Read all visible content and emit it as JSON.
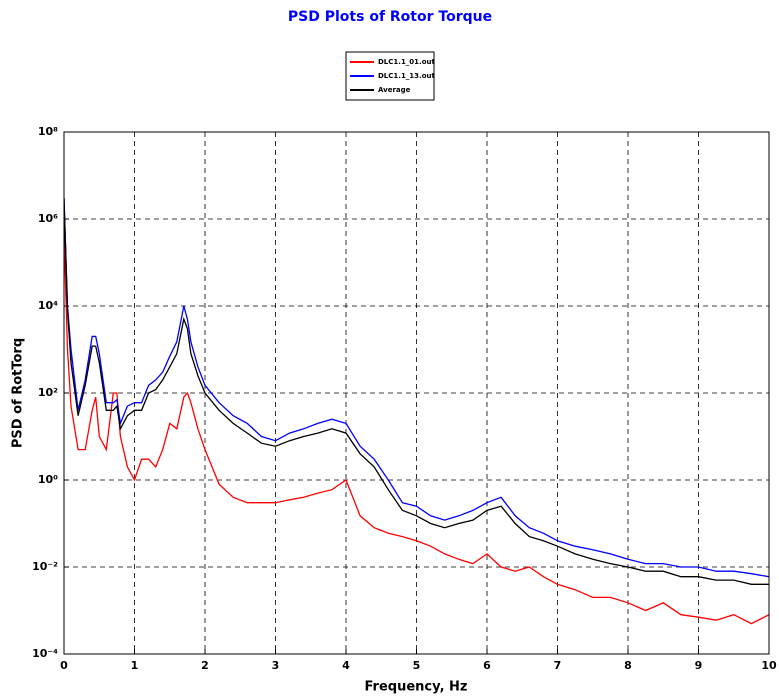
{
  "chart_data": {
    "type": "line",
    "title": "PSD Plots of Rotor Torque",
    "xlabel": "Frequency, Hz",
    "ylabel": "PSD of RotTorq",
    "log_y": true,
    "grid": true,
    "legend": "top-center",
    "x": [
      0,
      0.05,
      0.1,
      0.2,
      0.3,
      0.4,
      0.45,
      0.5,
      0.6,
      0.7,
      0.75,
      0.8,
      0.9,
      1.0,
      1.1,
      1.2,
      1.3,
      1.4,
      1.5,
      1.6,
      1.7,
      1.75,
      1.8,
      1.9,
      2.0,
      2.2,
      2.4,
      2.6,
      2.8,
      3.0,
      3.2,
      3.4,
      3.6,
      3.8,
      4.0,
      4.2,
      4.4,
      4.6,
      4.8,
      5.0,
      5.2,
      5.4,
      5.6,
      5.8,
      6.0,
      6.2,
      6.4,
      6.6,
      6.8,
      7.0,
      7.25,
      7.5,
      7.75,
      8.0,
      8.25,
      8.5,
      8.75,
      9.0,
      9.25,
      9.5,
      9.75,
      10.0
    ],
    "series": [
      {
        "name": "DLC1.1_01.out",
        "color": "#ff0000",
        "values": [
          500000,
          1000,
          50,
          5,
          5,
          40,
          80,
          10,
          5,
          100,
          100,
          10,
          2,
          1,
          3,
          3,
          2,
          5,
          20,
          15,
          80,
          100,
          60,
          15,
          5,
          0.8,
          0.4,
          0.3,
          0.3,
          0.3,
          0.35,
          0.4,
          0.5,
          0.6,
          1,
          0.15,
          0.08,
          0.06,
          0.05,
          0.04,
          0.03,
          0.02,
          0.015,
          0.012,
          0.02,
          0.01,
          0.008,
          0.01,
          0.006,
          0.004,
          0.003,
          0.002,
          0.002,
          0.0015,
          0.001,
          0.0015,
          0.0008,
          0.0007,
          0.0006,
          0.0008,
          0.0005,
          0.0008
        ]
      },
      {
        "name": "DLC1.1_13.out",
        "color": "#0000ff",
        "values": [
          3000000,
          10000,
          1000,
          40,
          200,
          2000,
          2000,
          800,
          60,
          60,
          70,
          20,
          50,
          60,
          60,
          150,
          200,
          300,
          700,
          1500,
          10000,
          5000,
          1500,
          400,
          150,
          60,
          30,
          20,
          10,
          8,
          12,
          15,
          20,
          25,
          20,
          6,
          3,
          1,
          0.3,
          0.25,
          0.15,
          0.12,
          0.15,
          0.2,
          0.3,
          0.4,
          0.15,
          0.08,
          0.06,
          0.04,
          0.03,
          0.025,
          0.02,
          0.015,
          0.012,
          0.012,
          0.01,
          0.01,
          0.008,
          0.008,
          0.007,
          0.006
        ]
      },
      {
        "name": "Average",
        "color": "#000000",
        "values": [
          3000000,
          8000,
          500,
          30,
          150,
          1200,
          1200,
          500,
          40,
          40,
          50,
          15,
          30,
          40,
          40,
          100,
          120,
          200,
          400,
          800,
          5000,
          3000,
          800,
          250,
          100,
          40,
          20,
          12,
          7,
          6,
          8,
          10,
          12,
          15,
          12,
          4,
          2,
          0.6,
          0.2,
          0.15,
          0.1,
          0.08,
          0.1,
          0.12,
          0.2,
          0.25,
          0.1,
          0.05,
          0.04,
          0.03,
          0.02,
          0.015,
          0.012,
          0.01,
          0.008,
          0.008,
          0.006,
          0.006,
          0.005,
          0.005,
          0.004,
          0.004
        ]
      }
    ],
    "xlim": [
      0,
      10
    ],
    "xticks": [
      0,
      1,
      2,
      3,
      4,
      5,
      6,
      7,
      8,
      9,
      10
    ],
    "ylim": [
      0.0001,
      100000000
    ],
    "yticks": [
      {
        "value": 0.0001,
        "label": "10⁻⁴"
      },
      {
        "value": 0.01,
        "label": "10⁻²"
      },
      {
        "value": 1,
        "label": "10⁰"
      },
      {
        "value": 100,
        "label": "10²"
      },
      {
        "value": 10000,
        "label": "10⁴"
      },
      {
        "value": 1000000,
        "label": "10⁶"
      },
      {
        "value": 100000000,
        "label": "10⁸"
      }
    ]
  }
}
